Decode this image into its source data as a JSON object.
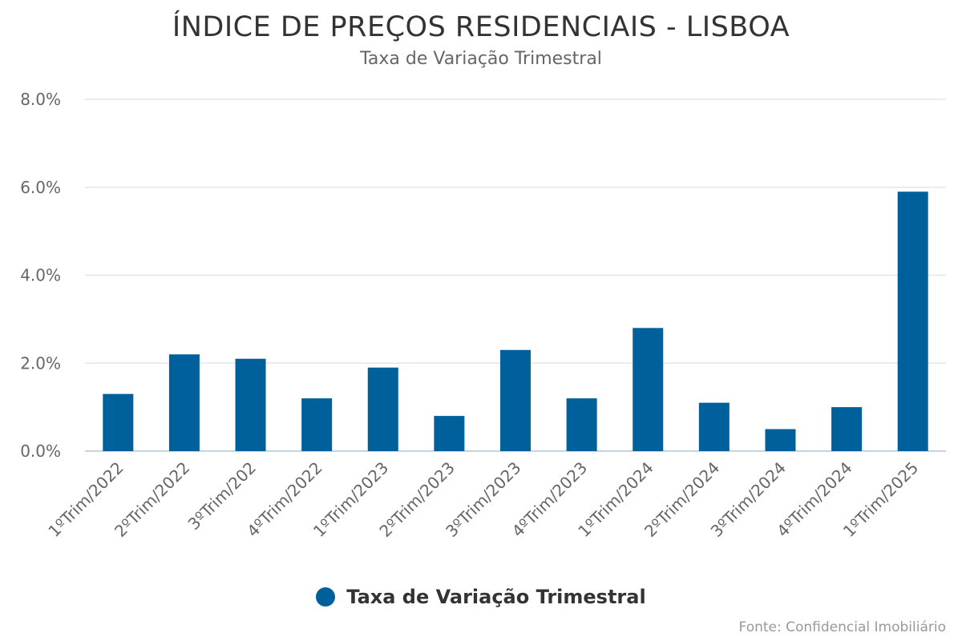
{
  "chart_data": {
    "type": "bar",
    "title": "ÍNDICE DE PREÇOS RESIDENCIAIS - LISBOA",
    "subtitle": "Taxa de Variação Trimestral",
    "categories": [
      "1ºTrim/2022",
      "2ºTrim/2022",
      "3ºTrim/202",
      "4ºTrim/2022",
      "1ºTrim/2023",
      "2ºTrim/2023",
      "3ºTrim/2023",
      "4ºTrim/2023",
      "1ºTrim/2024",
      "2ºTrim/2024",
      "3ºTrim/2024",
      "4ºTrim/2024",
      "1ºTrim/2025"
    ],
    "series": [
      {
        "name": "Taxa de Variação Trimestral",
        "values": [
          1.3,
          2.2,
          2.1,
          1.2,
          1.9,
          0.8,
          2.3,
          1.2,
          2.8,
          1.1,
          0.5,
          1.0,
          5.9
        ]
      }
    ],
    "ylim": [
      0,
      8
    ],
    "yticks": [
      "0.0%",
      "2.0%",
      "4.0%",
      "6.0%",
      "8.0%"
    ],
    "ytick_values": [
      0,
      2,
      4,
      6,
      8
    ],
    "grid": true,
    "legend_position": "bottom-center",
    "color": "#00609c",
    "source": "Fonte: Confidencial Imobiliário"
  }
}
